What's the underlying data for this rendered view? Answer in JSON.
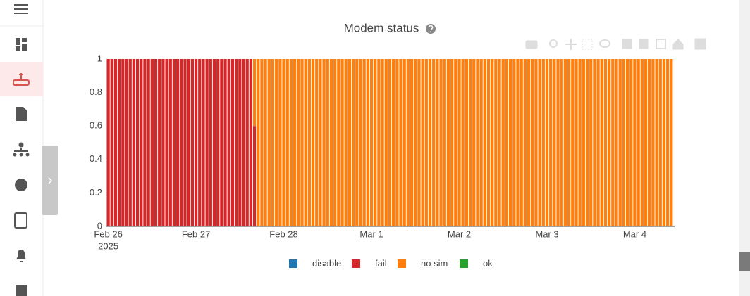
{
  "chart_data": {
    "type": "bar",
    "stacked": true,
    "title": "Modem status",
    "xlim": [
      -0.5,
      154.9
    ],
    "xticks": [
      {
        "value": 0,
        "label": "Feb 26"
      },
      {
        "value": 24,
        "label": "Feb 27"
      },
      {
        "value": 48,
        "label": "Feb 28"
      },
      {
        "value": 72,
        "label": "Mar 1"
      },
      {
        "value": 96,
        "label": "Mar 2"
      },
      {
        "value": 120,
        "label": "Mar 3"
      },
      {
        "value": 144,
        "label": "Mar 4"
      }
    ],
    "xtick_year": "2025",
    "ylim": [
      0,
      1
    ],
    "yticks": [
      0,
      0.2,
      0.4,
      0.6,
      0.8,
      1
    ],
    "grid": false,
    "legend": "bottom",
    "x": [
      0,
      1,
      2,
      3,
      4,
      5,
      6,
      7,
      8,
      9,
      10,
      11,
      12,
      13,
      14,
      15,
      16,
      17,
      18,
      19,
      20,
      21,
      22,
      23,
      24,
      25,
      26,
      27,
      28,
      29,
      30,
      31,
      32,
      33,
      34,
      35,
      36,
      37,
      38,
      39,
      40,
      41,
      42,
      43,
      44,
      45,
      46,
      47,
      48,
      49,
      50,
      51,
      52,
      53,
      54,
      55,
      56,
      57,
      58,
      59,
      60,
      61,
      62,
      63,
      64,
      65,
      66,
      67,
      68,
      69,
      70,
      71,
      72,
      73,
      74,
      75,
      76,
      77,
      78,
      79,
      80,
      81,
      82,
      83,
      84,
      85,
      86,
      87,
      88,
      89,
      90,
      91,
      92,
      93,
      94,
      95,
      96,
      97,
      98,
      99,
      100,
      101,
      102,
      103,
      104,
      105,
      106,
      107,
      108,
      109,
      110,
      111,
      112,
      113,
      114,
      115,
      116,
      117,
      118,
      119,
      120,
      121,
      122,
      123,
      124,
      125,
      126,
      127,
      128,
      129,
      130,
      131,
      132,
      133,
      134,
      135,
      136,
      137,
      138,
      139,
      140,
      141,
      142,
      143,
      144,
      145,
      146,
      147,
      148,
      149,
      150,
      151,
      152,
      153,
      154
    ],
    "series": [
      {
        "name": "disable",
        "color": "#1f77b4",
        "values": [
          0,
          0,
          0,
          0,
          0,
          0,
          0,
          0,
          0,
          0,
          0,
          0,
          0,
          0,
          0,
          0,
          0,
          0,
          0,
          0,
          0,
          0,
          0,
          0,
          0,
          0,
          0,
          0,
          0,
          0,
          0,
          0,
          0,
          0,
          0,
          0,
          0,
          0,
          0,
          0,
          0,
          0,
          0,
          0,
          0,
          0,
          0,
          0,
          0,
          0,
          0,
          0,
          0,
          0,
          0,
          0,
          0,
          0,
          0,
          0,
          0,
          0,
          0,
          0,
          0,
          0,
          0,
          0,
          0,
          0,
          0,
          0,
          0,
          0,
          0,
          0,
          0,
          0,
          0,
          0,
          0,
          0,
          0,
          0,
          0,
          0,
          0,
          0,
          0,
          0,
          0,
          0,
          0,
          0,
          0,
          0,
          0,
          0,
          0,
          0,
          0,
          0,
          0,
          0,
          0,
          0,
          0,
          0,
          0,
          0,
          0,
          0,
          0,
          0,
          0,
          0,
          0,
          0,
          0,
          0,
          0,
          0,
          0,
          0,
          0,
          0,
          0,
          0,
          0,
          0,
          0,
          0,
          0,
          0,
          0,
          0,
          0,
          0,
          0,
          0,
          0,
          0,
          0,
          0,
          0,
          0,
          0,
          0,
          0,
          0,
          0,
          0,
          0,
          0,
          0
        ]
      },
      {
        "name": "fail",
        "color": "#d62728",
        "values": [
          1,
          1,
          1,
          1,
          1,
          1,
          1,
          1,
          1,
          1,
          1,
          1,
          1,
          1,
          1,
          1,
          1,
          1,
          1,
          1,
          1,
          1,
          1,
          1,
          1,
          1,
          1,
          1,
          1,
          1,
          1,
          1,
          1,
          1,
          1,
          1,
          1,
          1,
          1,
          1,
          0.6,
          0,
          0,
          0,
          0,
          0,
          0,
          0,
          0,
          0,
          0,
          0,
          0,
          0,
          0,
          0,
          0,
          0,
          0,
          0,
          0,
          0,
          0,
          0,
          0,
          0,
          0,
          0,
          0,
          0,
          0,
          0,
          0,
          0,
          0,
          0,
          0,
          0,
          0,
          0,
          0,
          0,
          0,
          0,
          0,
          0,
          0,
          0,
          0,
          0,
          0,
          0,
          0,
          0,
          0,
          0,
          0,
          0,
          0,
          0,
          0,
          0,
          0,
          0,
          0,
          0,
          0,
          0,
          0,
          0,
          0,
          0,
          0,
          0,
          0,
          0,
          0,
          0,
          0,
          0,
          0,
          0,
          0,
          0,
          0,
          0,
          0,
          0,
          0,
          0,
          0,
          0,
          0,
          0,
          0,
          0,
          0,
          0,
          0,
          0,
          0,
          0,
          0,
          0,
          0,
          0,
          0,
          0,
          0,
          0,
          0,
          0,
          0,
          0,
          0
        ]
      },
      {
        "name": "no sim",
        "color": "#ff7f0e",
        "values": [
          0,
          0,
          0,
          0,
          0,
          0,
          0,
          0,
          0,
          0,
          0,
          0,
          0,
          0,
          0,
          0,
          0,
          0,
          0,
          0,
          0,
          0,
          0,
          0,
          0,
          0,
          0,
          0,
          0,
          0,
          0,
          0,
          0,
          0,
          0,
          0,
          0,
          0,
          0,
          0,
          0.4,
          1,
          1,
          1,
          1,
          1,
          1,
          1,
          1,
          1,
          1,
          1,
          1,
          1,
          1,
          1,
          1,
          1,
          1,
          1,
          1,
          1,
          1,
          1,
          1,
          1,
          1,
          1,
          1,
          1,
          1,
          1,
          1,
          1,
          1,
          1,
          1,
          1,
          1,
          1,
          1,
          1,
          1,
          1,
          1,
          1,
          1,
          1,
          1,
          1,
          1,
          1,
          1,
          1,
          1,
          1,
          1,
          1,
          1,
          1,
          1,
          1,
          1,
          1,
          1,
          1,
          1,
          1,
          1,
          1,
          1,
          1,
          1,
          1,
          1,
          1,
          1,
          1,
          1,
          1,
          1,
          1,
          1,
          1,
          1,
          1,
          1,
          1,
          1,
          1,
          1,
          1,
          1,
          1,
          1,
          1,
          1,
          1,
          1,
          1,
          1,
          1,
          1,
          1,
          1,
          1,
          1,
          1,
          1,
          1,
          1,
          1,
          1,
          1,
          1
        ]
      },
      {
        "name": "ok",
        "color": "#2ca02c",
        "values": [
          0,
          0,
          0,
          0,
          0,
          0,
          0,
          0,
          0,
          0,
          0,
          0,
          0,
          0,
          0,
          0,
          0,
          0,
          0,
          0,
          0,
          0,
          0,
          0,
          0,
          0,
          0,
          0,
          0,
          0,
          0,
          0,
          0,
          0,
          0,
          0,
          0,
          0,
          0,
          0,
          0,
          0,
          0,
          0,
          0,
          0,
          0,
          0,
          0,
          0,
          0,
          0,
          0,
          0,
          0,
          0,
          0,
          0,
          0,
          0,
          0,
          0,
          0,
          0,
          0,
          0,
          0,
          0,
          0,
          0,
          0,
          0,
          0,
          0,
          0,
          0,
          0,
          0,
          0,
          0,
          0,
          0,
          0,
          0,
          0,
          0,
          0,
          0,
          0,
          0,
          0,
          0,
          0,
          0,
          0,
          0,
          0,
          0,
          0,
          0,
          0,
          0,
          0,
          0,
          0,
          0,
          0,
          0,
          0,
          0,
          0,
          0,
          0,
          0,
          0,
          0,
          0,
          0,
          0,
          0,
          0,
          0,
          0,
          0,
          0,
          0,
          0,
          0,
          0,
          0,
          0,
          0,
          0,
          0,
          0,
          0,
          0,
          0,
          0,
          0,
          0,
          0,
          0,
          0,
          0,
          0,
          0,
          0,
          0,
          0,
          0,
          0,
          0,
          0,
          0
        ]
      }
    ]
  }
}
